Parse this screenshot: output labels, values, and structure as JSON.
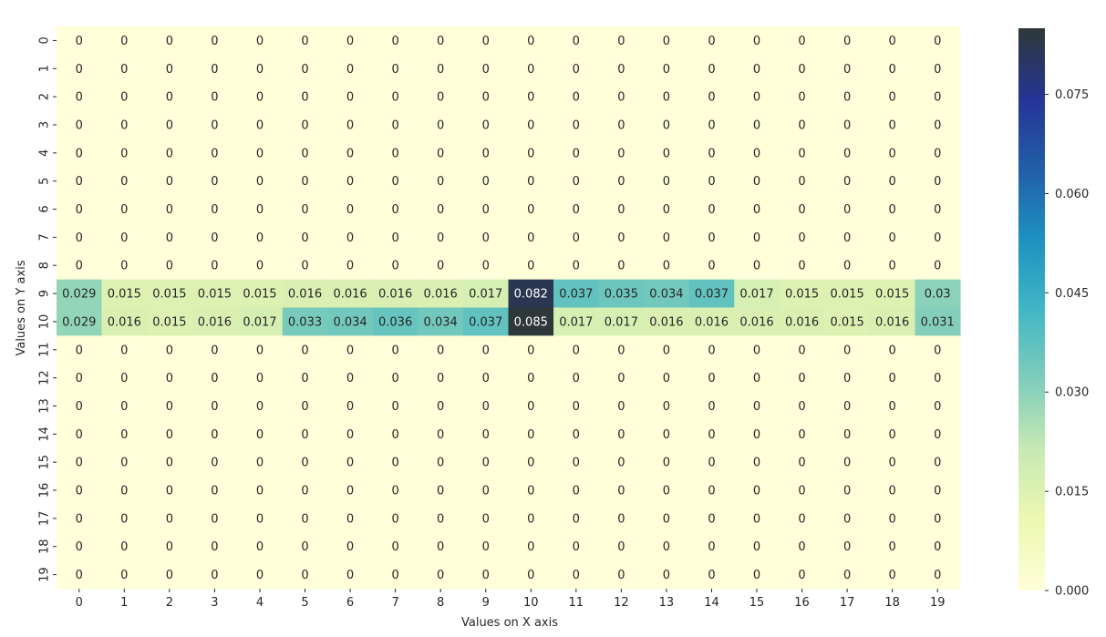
{
  "chart_data": {
    "type": "heatmap",
    "title": "",
    "xlabel": "Values on X axis",
    "ylabel": "Values on Y axis",
    "x_categories": [
      "0",
      "1",
      "2",
      "3",
      "4",
      "5",
      "6",
      "7",
      "8",
      "9",
      "10",
      "11",
      "12",
      "13",
      "14",
      "15",
      "16",
      "17",
      "18",
      "19"
    ],
    "y_categories": [
      "0",
      "1",
      "2",
      "3",
      "4",
      "5",
      "6",
      "7",
      "8",
      "9",
      "10",
      "11",
      "12",
      "13",
      "14",
      "15",
      "16",
      "17",
      "18",
      "19"
    ],
    "values": [
      [
        0,
        0,
        0,
        0,
        0,
        0,
        0,
        0,
        0,
        0,
        0,
        0,
        0,
        0,
        0,
        0,
        0,
        0,
        0,
        0
      ],
      [
        0,
        0,
        0,
        0,
        0,
        0,
        0,
        0,
        0,
        0,
        0,
        0,
        0,
        0,
        0,
        0,
        0,
        0,
        0,
        0
      ],
      [
        0,
        0,
        0,
        0,
        0,
        0,
        0,
        0,
        0,
        0,
        0,
        0,
        0,
        0,
        0,
        0,
        0,
        0,
        0,
        0
      ],
      [
        0,
        0,
        0,
        0,
        0,
        0,
        0,
        0,
        0,
        0,
        0,
        0,
        0,
        0,
        0,
        0,
        0,
        0,
        0,
        0
      ],
      [
        0,
        0,
        0,
        0,
        0,
        0,
        0,
        0,
        0,
        0,
        0,
        0,
        0,
        0,
        0,
        0,
        0,
        0,
        0,
        0
      ],
      [
        0,
        0,
        0,
        0,
        0,
        0,
        0,
        0,
        0,
        0,
        0,
        0,
        0,
        0,
        0,
        0,
        0,
        0,
        0,
        0
      ],
      [
        0,
        0,
        0,
        0,
        0,
        0,
        0,
        0,
        0,
        0,
        0,
        0,
        0,
        0,
        0,
        0,
        0,
        0,
        0,
        0
      ],
      [
        0,
        0,
        0,
        0,
        0,
        0,
        0,
        0,
        0,
        0,
        0,
        0,
        0,
        0,
        0,
        0,
        0,
        0,
        0,
        0
      ],
      [
        0,
        0,
        0,
        0,
        0,
        0,
        0,
        0,
        0,
        0,
        0,
        0,
        0,
        0,
        0,
        0,
        0,
        0,
        0,
        0
      ],
      [
        0.029,
        0.015,
        0.015,
        0.015,
        0.015,
        0.016,
        0.016,
        0.016,
        0.016,
        0.017,
        0.082,
        0.037,
        0.035,
        0.034,
        0.037,
        0.017,
        0.015,
        0.015,
        0.015,
        0.03
      ],
      [
        0.029,
        0.016,
        0.015,
        0.016,
        0.017,
        0.033,
        0.034,
        0.036,
        0.034,
        0.037,
        0.085,
        0.017,
        0.017,
        0.016,
        0.016,
        0.016,
        0.016,
        0.015,
        0.016,
        0.031
      ],
      [
        0,
        0,
        0,
        0,
        0,
        0,
        0,
        0,
        0,
        0,
        0,
        0,
        0,
        0,
        0,
        0,
        0,
        0,
        0,
        0
      ],
      [
        0,
        0,
        0,
        0,
        0,
        0,
        0,
        0,
        0,
        0,
        0,
        0,
        0,
        0,
        0,
        0,
        0,
        0,
        0,
        0
      ],
      [
        0,
        0,
        0,
        0,
        0,
        0,
        0,
        0,
        0,
        0,
        0,
        0,
        0,
        0,
        0,
        0,
        0,
        0,
        0,
        0
      ],
      [
        0,
        0,
        0,
        0,
        0,
        0,
        0,
        0,
        0,
        0,
        0,
        0,
        0,
        0,
        0,
        0,
        0,
        0,
        0,
        0
      ],
      [
        0,
        0,
        0,
        0,
        0,
        0,
        0,
        0,
        0,
        0,
        0,
        0,
        0,
        0,
        0,
        0,
        0,
        0,
        0,
        0
      ],
      [
        0,
        0,
        0,
        0,
        0,
        0,
        0,
        0,
        0,
        0,
        0,
        0,
        0,
        0,
        0,
        0,
        0,
        0,
        0,
        0
      ],
      [
        0,
        0,
        0,
        0,
        0,
        0,
        0,
        0,
        0,
        0,
        0,
        0,
        0,
        0,
        0,
        0,
        0,
        0,
        0,
        0
      ],
      [
        0,
        0,
        0,
        0,
        0,
        0,
        0,
        0,
        0,
        0,
        0,
        0,
        0,
        0,
        0,
        0,
        0,
        0,
        0,
        0
      ],
      [
        0,
        0,
        0,
        0,
        0,
        0,
        0,
        0,
        0,
        0,
        0,
        0,
        0,
        0,
        0,
        0,
        0,
        0,
        0,
        0
      ]
    ],
    "annotations": true,
    "colormap": "YlGnBu",
    "colorbar": {
      "range": [
        0,
        0.085
      ],
      "ticks": [
        0.0,
        0.015,
        0.03,
        0.045,
        0.06,
        0.075
      ],
      "tick_labels": [
        "0.000",
        "0.015",
        "0.030",
        "0.045",
        "0.060",
        "0.075"
      ],
      "colors": [
        "#ffffd9",
        "#edf8b1",
        "#c7e9b4",
        "#7fcdbb",
        "#41b6c4",
        "#1d91c0",
        "#225ea8",
        "#253494",
        "#2e3838"
      ]
    },
    "grid": false,
    "legend": "colorbar-right"
  }
}
